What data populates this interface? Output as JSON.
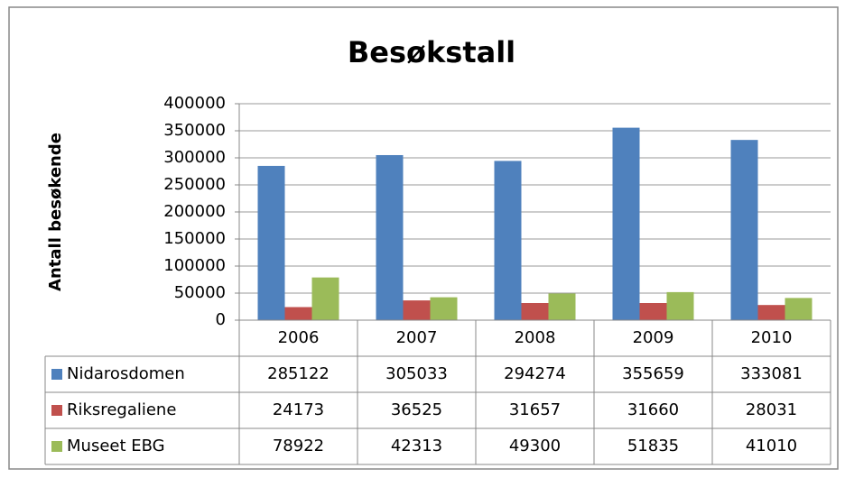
{
  "chart_data": {
    "type": "bar",
    "title": "Besøkstall",
    "y_label": "Antall besøkende",
    "categories": [
      "2006",
      "2007",
      "2008",
      "2009",
      "2010"
    ],
    "series": [
      {
        "name": "Nidarosdomen",
        "color": "#4f81bd",
        "values": [
          285122,
          305033,
          294274,
          355659,
          333081
        ]
      },
      {
        "name": "Riksregaliene",
        "color": "#c0504d",
        "values": [
          24173,
          36525,
          31657,
          31660,
          28031
        ]
      },
      {
        "name": "Museet EBG",
        "color": "#9bbb59",
        "values": [
          78922,
          42313,
          49300,
          51835,
          41010
        ]
      }
    ],
    "ylim": [
      0,
      400000
    ],
    "yticks": [
      0,
      50000,
      100000,
      150000,
      200000,
      250000,
      300000,
      350000,
      400000
    ],
    "grid": true,
    "data_table": true
  }
}
